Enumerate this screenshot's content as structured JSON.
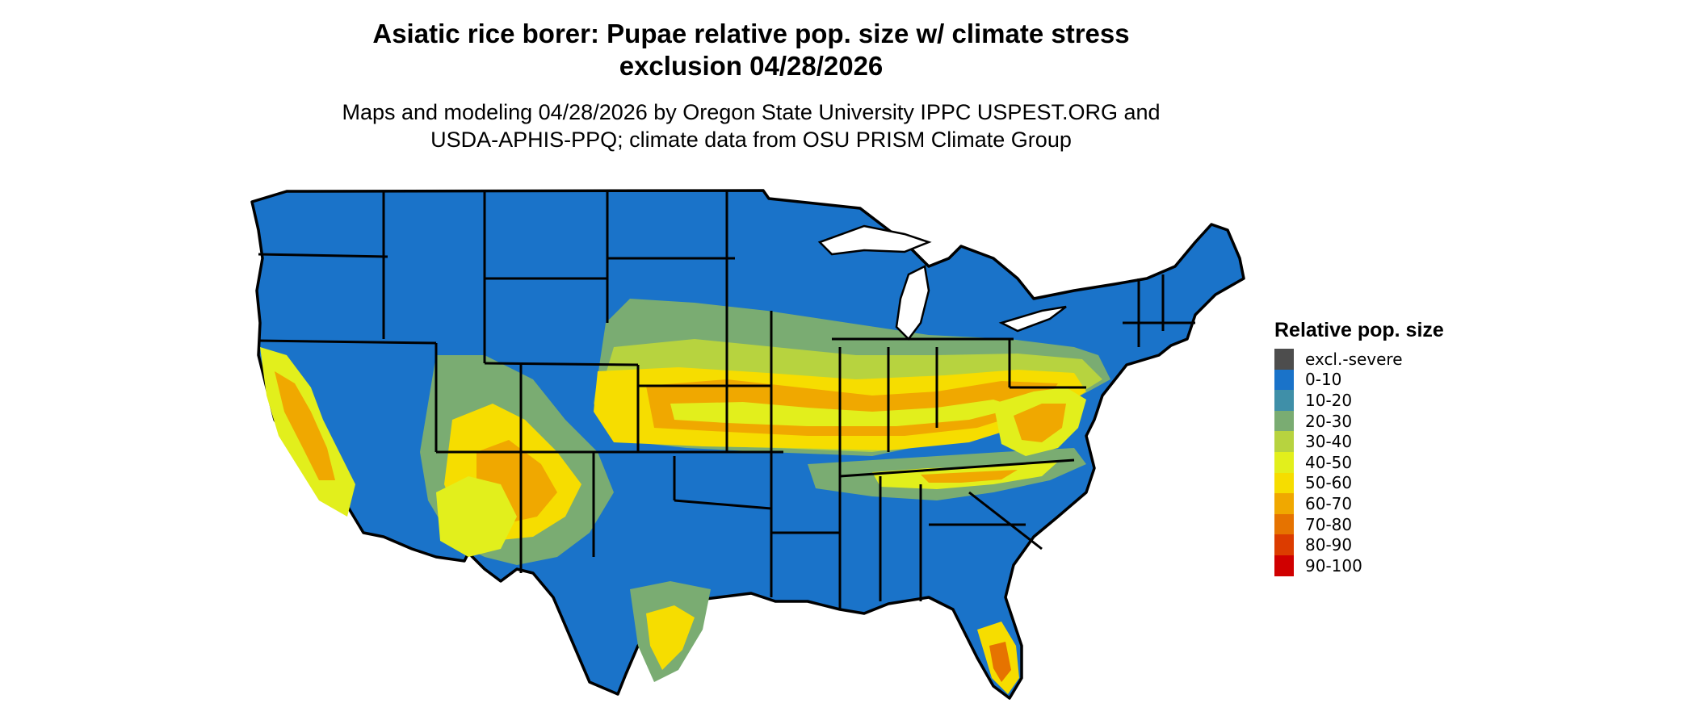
{
  "title_line1": "Asiatic rice borer: Pupae relative pop. size w/ climate stress",
  "title_line2": "exclusion 04/28/2026",
  "subtitle_line1": "Maps and modeling 04/28/2026 by Oregon State University IPPC USPEST.ORG and",
  "subtitle_line2": "USDA-APHIS-PPQ; climate data from OSU PRISM Climate Group",
  "legend": {
    "title": "Relative pop. size",
    "items": [
      {
        "label": "excl.-severe",
        "color": "#4d4d4d"
      },
      {
        "label": "0-10",
        "color": "#1a73c9"
      },
      {
        "label": "10-20",
        "color": "#3f8fa8"
      },
      {
        "label": "20-30",
        "color": "#7aac72"
      },
      {
        "label": "30-40",
        "color": "#b7d33f"
      },
      {
        "label": "40-50",
        "color": "#e2ef1c"
      },
      {
        "label": "50-60",
        "color": "#f6dd00"
      },
      {
        "label": "60-70",
        "color": "#f0a800"
      },
      {
        "label": "70-80",
        "color": "#e67300"
      },
      {
        "label": "80-90",
        "color": "#dc3c00"
      },
      {
        "label": "90-100",
        "color": "#d00000"
      }
    ]
  }
}
